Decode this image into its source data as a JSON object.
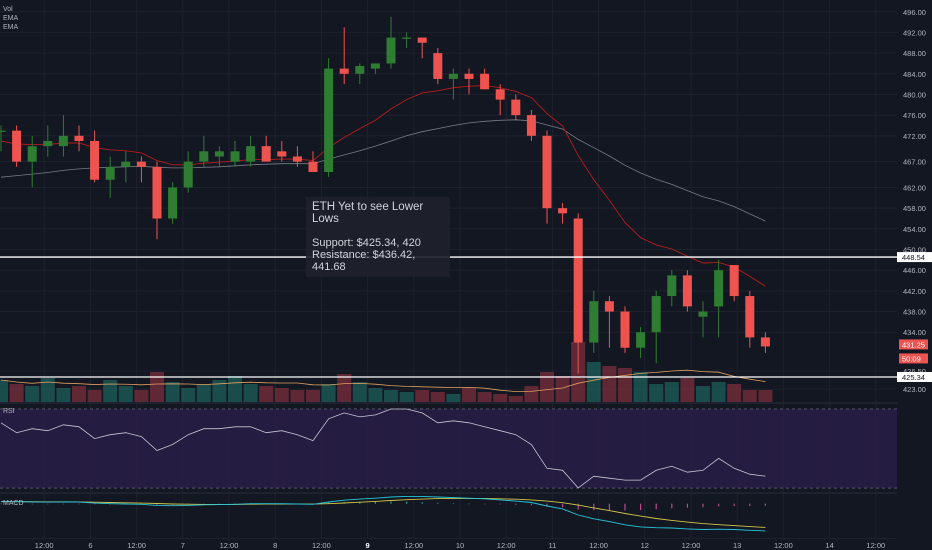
{
  "legend": [
    "Vol",
    "EMA",
    "EMA"
  ],
  "annotation": {
    "title": "ETH Yet to see Lower Lows",
    "support": "Support: $425.34, 420",
    "resistance": "Resistance: $436.42, 441.68"
  },
  "panels": {
    "rsi": "RSI",
    "macd": "MACD"
  },
  "colors": {
    "background": "#131722",
    "up": "#2e7d32",
    "down": "#ef5350",
    "ema_fast": "#b71c1c",
    "ema_slow": "#787b86",
    "rsi_line": "#c7c7d1",
    "rsi_band": "#2a1e4a",
    "macd_line": "#26c6da",
    "signal_line": "#d4c34a"
  },
  "chart_data": {
    "type": "candlestick",
    "price_axis": {
      "ylim": [
        420.5,
        497.5
      ],
      "ticks": [
        496.0,
        492.0,
        488.0,
        484.0,
        480.0,
        476.0,
        472.0,
        467.0,
        462.0,
        458.0,
        454.0,
        450.0,
        446.0,
        442.0,
        438.0,
        434.0,
        426.5,
        423.0
      ],
      "tick_labels": [
        "496.00",
        "492.00",
        "488.00",
        "484.00",
        "480.00",
        "476.00",
        "472.00",
        "467.00",
        "462.00",
        "458.00",
        "454.00",
        "450.00",
        "446.00",
        "442.00",
        "438.00",
        "434.00",
        "426.50",
        "423.00"
      ]
    },
    "x_axis": {
      "labels": [
        "5",
        "12:00",
        "6",
        "12:00",
        "7",
        "12:00",
        "8",
        "12:00",
        "9",
        "12:00",
        "10",
        "12:00",
        "11",
        "12:00",
        "12",
        "12:00",
        "13",
        "12:00",
        "14",
        "12:00"
      ]
    },
    "horizontal_lines": [
      {
        "value": 448.54,
        "label": "448.54"
      },
      {
        "value": 425.34,
        "label": "425.34"
      }
    ],
    "price_labels": [
      {
        "value": 431.25,
        "label": "431.25"
      },
      {
        "value": 430.09,
        "label": "50:09"
      }
    ],
    "candles": [
      {
        "o": 473.0,
        "h": 474.0,
        "l": 469.0,
        "c": 473.0
      },
      {
        "o": 473.0,
        "h": 474.0,
        "l": 466.0,
        "c": 467.0
      },
      {
        "o": 467.0,
        "h": 472.0,
        "l": 462.0,
        "c": 470.0
      },
      {
        "o": 470.0,
        "h": 474.0,
        "l": 468.0,
        "c": 471.0
      },
      {
        "o": 470.0,
        "h": 476.0,
        "l": 468.0,
        "c": 472.0
      },
      {
        "o": 472.0,
        "h": 474.0,
        "l": 469.0,
        "c": 471.0
      },
      {
        "o": 471.0,
        "h": 473.0,
        "l": 463.0,
        "c": 463.5
      },
      {
        "o": 463.5,
        "h": 468.0,
        "l": 460.0,
        "c": 466.0
      },
      {
        "o": 466.0,
        "h": 469.0,
        "l": 463.0,
        "c": 467.0
      },
      {
        "o": 467.0,
        "h": 468.0,
        "l": 463.0,
        "c": 466.0
      },
      {
        "o": 466.0,
        "h": 467.0,
        "l": 452.0,
        "c": 456.0
      },
      {
        "o": 456.0,
        "h": 463.0,
        "l": 455.0,
        "c": 462.0
      },
      {
        "o": 462.0,
        "h": 469.0,
        "l": 461.0,
        "c": 467.0
      },
      {
        "o": 467.0,
        "h": 472.0,
        "l": 466.0,
        "c": 469.0
      },
      {
        "o": 468.0,
        "h": 470.0,
        "l": 466.0,
        "c": 469.0
      },
      {
        "o": 467.0,
        "h": 471.0,
        "l": 466.0,
        "c": 469.0
      },
      {
        "o": 467.0,
        "h": 472.0,
        "l": 466.0,
        "c": 470.0
      },
      {
        "o": 470.0,
        "h": 472.0,
        "l": 467.0,
        "c": 467.0
      },
      {
        "o": 469.0,
        "h": 471.0,
        "l": 467.0,
        "c": 468.0
      },
      {
        "o": 468.0,
        "h": 470.0,
        "l": 466.0,
        "c": 467.0
      },
      {
        "o": 467.0,
        "h": 469.0,
        "l": 465.0,
        "c": 465.0
      },
      {
        "o": 465.0,
        "h": 487.0,
        "l": 464.0,
        "c": 485.0
      },
      {
        "o": 485.0,
        "h": 493.0,
        "l": 482.0,
        "c": 484.0
      },
      {
        "o": 484.0,
        "h": 486.0,
        "l": 482.0,
        "c": 485.5
      },
      {
        "o": 485.0,
        "h": 486.0,
        "l": 484.0,
        "c": 486.0
      },
      {
        "o": 486.0,
        "h": 495.0,
        "l": 485.0,
        "c": 491.0
      },
      {
        "o": 491.0,
        "h": 492.0,
        "l": 489.0,
        "c": 491.0
      },
      {
        "o": 491.0,
        "h": 491.0,
        "l": 487.0,
        "c": 490.0
      },
      {
        "o": 488.0,
        "h": 489.0,
        "l": 482.0,
        "c": 483.0
      },
      {
        "o": 483.0,
        "h": 485.0,
        "l": 479.0,
        "c": 484.0
      },
      {
        "o": 484.0,
        "h": 485.0,
        "l": 480.0,
        "c": 483.0
      },
      {
        "o": 484.0,
        "h": 485.0,
        "l": 481.0,
        "c": 481.0
      },
      {
        "o": 481.0,
        "h": 482.0,
        "l": 476.0,
        "c": 479.0
      },
      {
        "o": 479.0,
        "h": 480.0,
        "l": 475.0,
        "c": 476.0
      },
      {
        "o": 476.0,
        "h": 477.0,
        "l": 471.0,
        "c": 472.0
      },
      {
        "o": 472.0,
        "h": 473.0,
        "l": 455.0,
        "c": 458.0
      },
      {
        "o": 458.0,
        "h": 459.0,
        "l": 455.0,
        "c": 457.0
      },
      {
        "o": 456.0,
        "h": 457.0,
        "l": 426.0,
        "c": 432.0
      },
      {
        "o": 432.0,
        "h": 442.0,
        "l": 430.0,
        "c": 440.0
      },
      {
        "o": 440.0,
        "h": 441.0,
        "l": 431.0,
        "c": 438.0
      },
      {
        "o": 438.0,
        "h": 439.0,
        "l": 430.0,
        "c": 431.0
      },
      {
        "o": 431.0,
        "h": 435.0,
        "l": 429.0,
        "c": 434.0
      },
      {
        "o": 434.0,
        "h": 442.0,
        "l": 428.0,
        "c": 441.0
      },
      {
        "o": 441.0,
        "h": 446.0,
        "l": 439.0,
        "c": 445.0
      },
      {
        "o": 445.0,
        "h": 446.0,
        "l": 438.0,
        "c": 439.0
      },
      {
        "o": 437.0,
        "h": 440.0,
        "l": 433.0,
        "c": 438.0
      },
      {
        "o": 439.0,
        "h": 448.0,
        "l": 433.0,
        "c": 446.0
      },
      {
        "o": 447.0,
        "h": 447.0,
        "l": 440.0,
        "c": 441.0
      },
      {
        "o": 441.0,
        "h": 442.0,
        "l": 431.0,
        "c": 433.0
      },
      {
        "o": 433.0,
        "h": 434.0,
        "l": 430.0,
        "c": 431.25
      }
    ],
    "volume": [
      22,
      18,
      16,
      24,
      14,
      16,
      12,
      22,
      16,
      12,
      30,
      20,
      14,
      18,
      22,
      26,
      18,
      16,
      14,
      12,
      12,
      18,
      28,
      20,
      14,
      12,
      10,
      12,
      10,
      8,
      14,
      10,
      8,
      6,
      16,
      30,
      26,
      60,
      40,
      36,
      34,
      30,
      18,
      20,
      24,
      16,
      20,
      18,
      12,
      12
    ],
    "ema_fast": [
      471.0,
      470.4,
      470.3,
      470.3,
      470.6,
      470.6,
      469.7,
      469.3,
      469.1,
      468.7,
      467.2,
      466.4,
      466.4,
      466.7,
      466.9,
      467.1,
      467.4,
      467.4,
      467.5,
      467.5,
      467.2,
      469.7,
      471.7,
      473.4,
      475.0,
      477.2,
      479.0,
      480.3,
      480.7,
      481.3,
      481.6,
      481.7,
      481.3,
      480.6,
      479.4,
      476.3,
      473.9,
      468.2,
      463.5,
      459.5,
      455.2,
      452.3,
      450.9,
      450.1,
      448.7,
      447.4,
      447.5,
      446.6,
      444.8,
      442.9
    ],
    "ema_slow": [
      464.0,
      464.3,
      464.6,
      464.9,
      465.3,
      465.6,
      465.8,
      465.9,
      466.0,
      466.1,
      465.9,
      465.8,
      465.8,
      465.9,
      466.0,
      466.2,
      466.4,
      466.5,
      466.6,
      466.6,
      466.6,
      467.5,
      468.3,
      469.1,
      470.0,
      471.0,
      472.0,
      472.8,
      473.4,
      474.0,
      474.5,
      474.8,
      475.0,
      475.1,
      474.9,
      474.1,
      473.3,
      471.3,
      469.7,
      468.1,
      466.3,
      464.8,
      463.6,
      462.6,
      461.4,
      460.2,
      459.4,
      458.3,
      456.9,
      455.5
    ],
    "rsi": {
      "ylim": [
        28,
        72
      ],
      "ticks": [
        60.0,
        40.0
      ],
      "tick_labels": [
        "60.0000",
        "40.0000"
      ],
      "band": [
        30,
        70
      ],
      "values": [
        63,
        58,
        60,
        59,
        62,
        61,
        55,
        57,
        58,
        56,
        49,
        52,
        57,
        60,
        60,
        61,
        61,
        58,
        59,
        57,
        54,
        65,
        68,
        66,
        67,
        70,
        70,
        68,
        63,
        64,
        63,
        61,
        59,
        57,
        52,
        40,
        39,
        30,
        36,
        35,
        34,
        34,
        39,
        41,
        38,
        39,
        45,
        40,
        37,
        36
      ]
    },
    "macd": {
      "ylim": [
        -11.5,
        3.0
      ],
      "ticks": [
        0.0,
        -10.0
      ],
      "tick_labels": [
        "0.0000",
        "-10.0000"
      ],
      "macd": [
        0.8,
        0.7,
        0.6,
        0.55,
        0.6,
        0.55,
        0.2,
        0.0,
        -0.1,
        -0.2,
        -0.6,
        -0.7,
        -0.6,
        -0.4,
        -0.3,
        -0.2,
        0.0,
        0.0,
        0.0,
        -0.1,
        -0.2,
        0.6,
        1.2,
        1.6,
        1.9,
        2.3,
        2.5,
        2.5,
        2.3,
        2.1,
        1.9,
        1.7,
        1.3,
        0.9,
        0.4,
        -0.8,
        -1.8,
        -3.9,
        -5.2,
        -6.2,
        -7.3,
        -8.0,
        -8.3,
        -8.4,
        -8.7,
        -8.9,
        -8.8,
        -8.9,
        -9.2,
        -9.4
      ],
      "signal": [
        0.7,
        0.7,
        0.7,
        0.65,
        0.64,
        0.62,
        0.53,
        0.42,
        0.32,
        0.22,
        0.06,
        -0.09,
        -0.19,
        -0.23,
        -0.24,
        -0.23,
        -0.18,
        -0.15,
        -0.12,
        -0.12,
        -0.14,
        0.01,
        0.25,
        0.52,
        0.8,
        1.1,
        1.38,
        1.6,
        1.74,
        1.81,
        1.83,
        1.8,
        1.7,
        1.54,
        1.31,
        0.89,
        0.35,
        -0.5,
        -1.44,
        -2.39,
        -3.37,
        -4.3,
        -5.1,
        -5.76,
        -6.35,
        -6.86,
        -7.25,
        -7.58,
        -7.9,
        -8.2
      ]
    }
  }
}
